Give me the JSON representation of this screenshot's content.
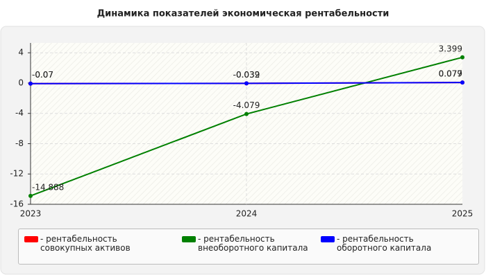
{
  "chart_data": {
    "type": "line",
    "title": "Динамика показателей экономическая рентабельности",
    "categories": [
      "2023",
      "2024",
      "2025"
    ],
    "series": [
      {
        "name": "- рентабельность совокупных активов",
        "color": "#ff0000",
        "values": [
          -0.07,
          -0.032,
          0.077
        ]
      },
      {
        "name": "- рентабельность внеоборотного капитала",
        "color": "#008000",
        "values": [
          -14.888,
          -4.079,
          3.399
        ]
      },
      {
        "name": "- рентабельность оборотного капитала",
        "color": "#0000ff",
        "values": [
          -0.07,
          -0.039,
          0.079
        ]
      }
    ],
    "ylim": [
      -16,
      5.3
    ],
    "yticks": [
      -16,
      -12,
      -8,
      -4,
      0,
      4
    ],
    "grid": true
  }
}
